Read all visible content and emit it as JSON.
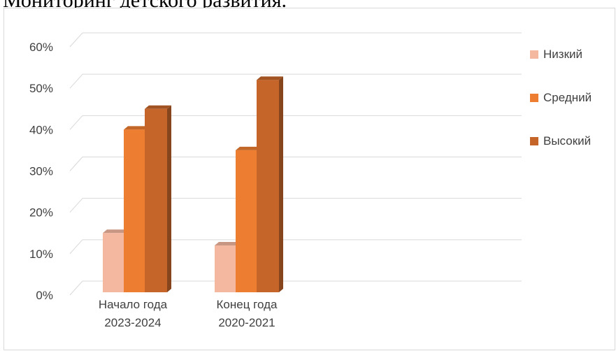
{
  "page_title": "Мониторинг детского развития.",
  "chart_data": {
    "type": "bar",
    "title": "",
    "xlabel": "",
    "ylabel": "",
    "categories": [
      [
        "Начало года",
        "2023-2024"
      ],
      [
        "Конец года",
        "2020-2021"
      ]
    ],
    "series": [
      {
        "name": "Низкий",
        "values": [
          15,
          12
        ],
        "color": "#f4b8a0"
      },
      {
        "name": "Средний",
        "values": [
          40,
          35
        ],
        "color": "#ed7d31"
      },
      {
        "name": "Высокий",
        "values": [
          45,
          52
        ],
        "color": "#c5652a"
      }
    ],
    "ylim": [
      0,
      60
    ],
    "yticks": [
      "0%",
      "10%",
      "20%",
      "30%",
      "40%",
      "50%",
      "60%"
    ],
    "grid": true,
    "legend": "right",
    "style": "3d-clustered-column"
  }
}
